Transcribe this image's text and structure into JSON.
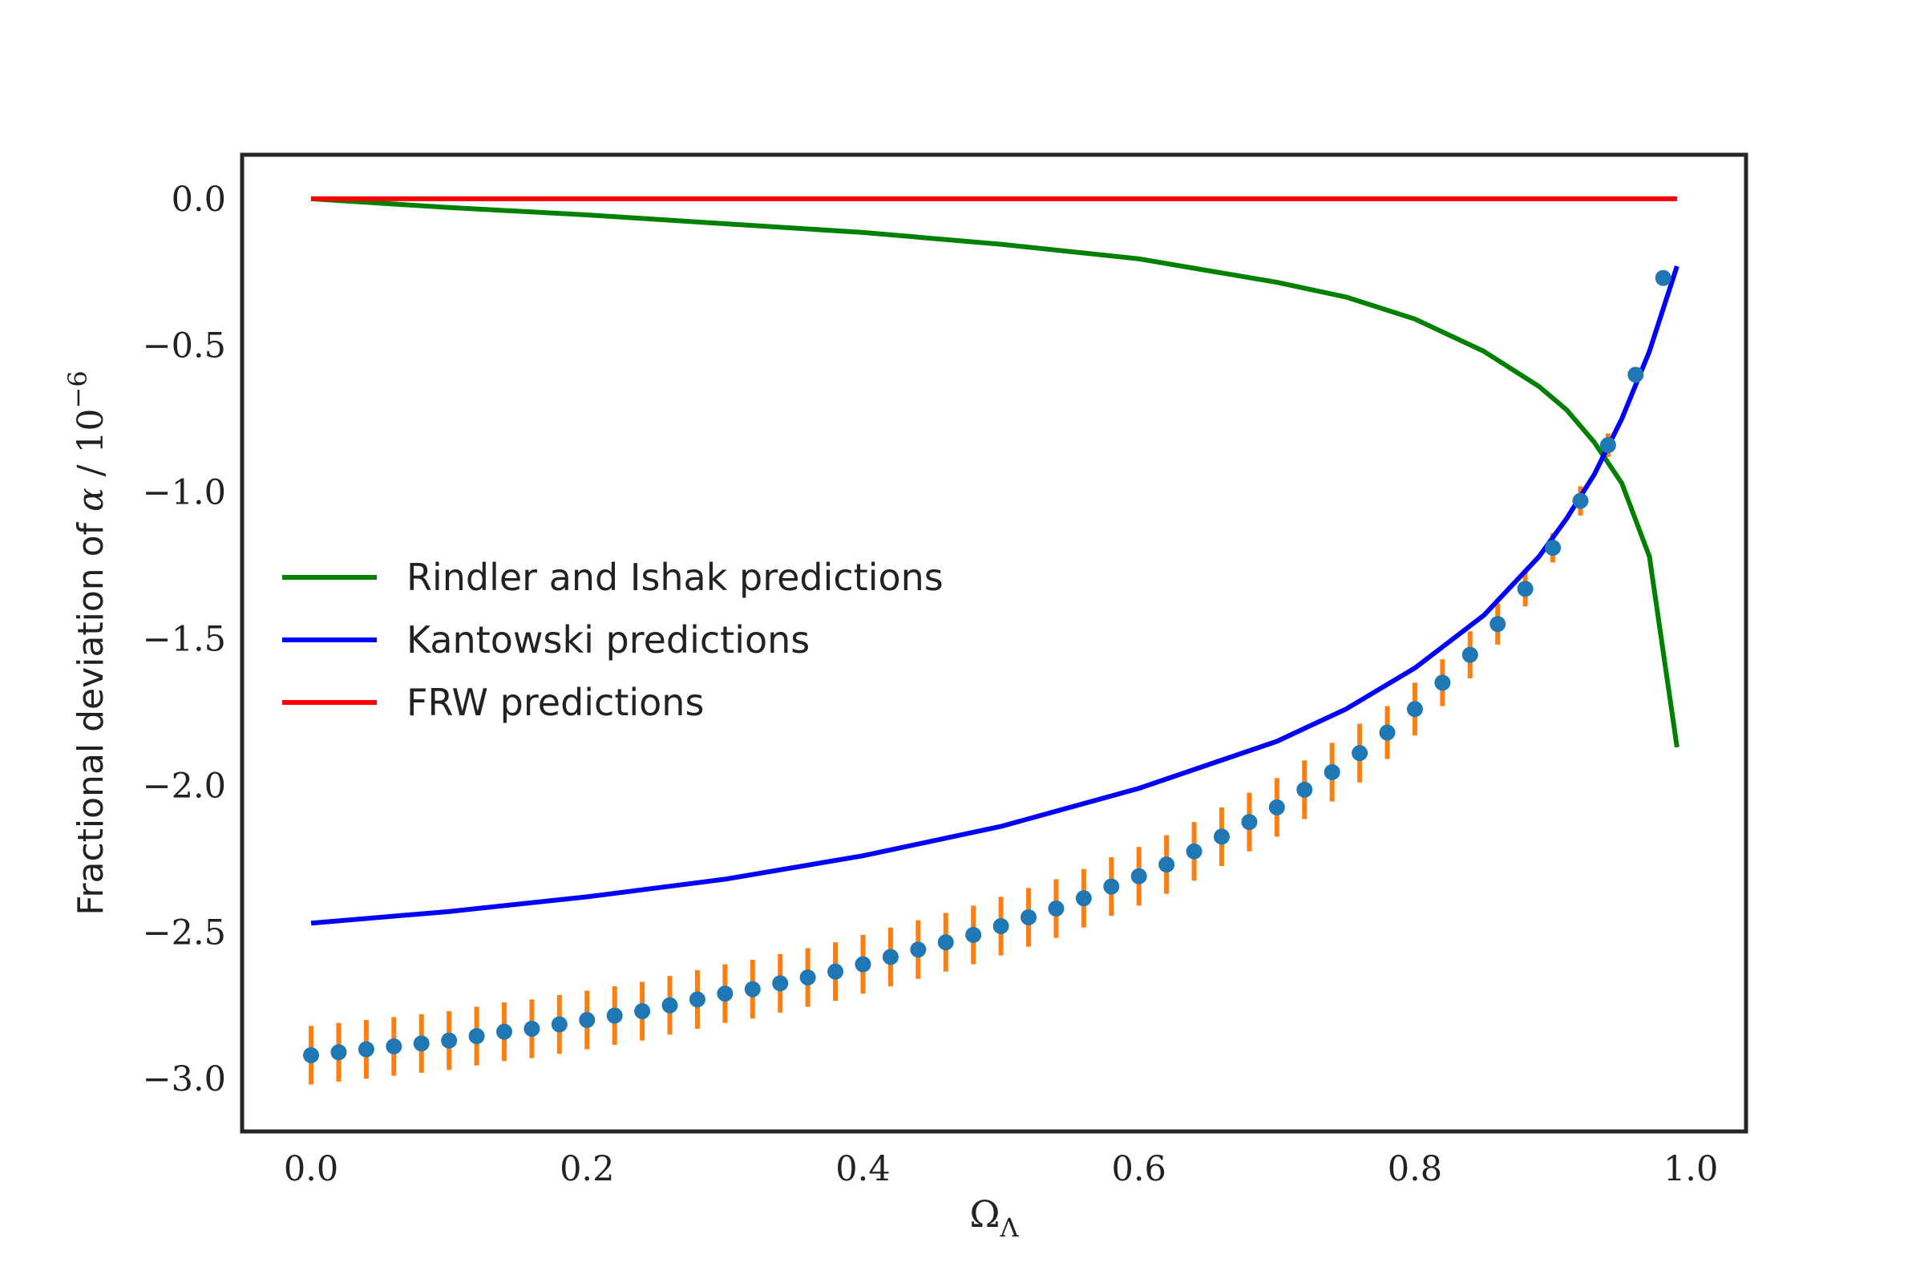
{
  "chart_data": {
    "type": "line",
    "xlabel": "Ω",
    "xlabel_sub": "Λ",
    "ylabel_prefix": "Fractional deviation of ",
    "ylabel_alpha": "α",
    "ylabel_mid": " / 10",
    "ylabel_exp": "−6",
    "xlim": [
      -0.05,
      1.04
    ],
    "ylim": [
      -3.18,
      0.15
    ],
    "x_ticks": [
      0.0,
      0.2,
      0.4,
      0.6,
      0.8,
      1.0
    ],
    "x_tick_labels": [
      "0.0",
      "0.2",
      "0.4",
      "0.6",
      "0.8",
      "1.0"
    ],
    "y_ticks": [
      0.0,
      -0.5,
      -1.0,
      -1.5,
      -2.0,
      -2.5,
      -3.0
    ],
    "y_tick_labels": [
      "0.0",
      "−0.5",
      "−1.0",
      "−1.5",
      "−2.0",
      "−2.5",
      "−3.0"
    ],
    "grid": false,
    "legend_position": "center-left",
    "series": [
      {
        "name": "Rindler and Ishak predictions",
        "kind": "line",
        "color": "#008000",
        "x": [
          0.0,
          0.1,
          0.2,
          0.3,
          0.4,
          0.5,
          0.6,
          0.7,
          0.75,
          0.8,
          0.85,
          0.89,
          0.91,
          0.93,
          0.95,
          0.97,
          0.99
        ],
        "y": [
          0.0,
          -0.03,
          -0.055,
          -0.085,
          -0.115,
          -0.155,
          -0.205,
          -0.285,
          -0.335,
          -0.41,
          -0.52,
          -0.64,
          -0.72,
          -0.83,
          -0.97,
          -1.22,
          -1.87
        ]
      },
      {
        "name": "Kantowski predictions",
        "kind": "line",
        "color": "#0000ff",
        "x": [
          0.0,
          0.1,
          0.2,
          0.3,
          0.4,
          0.5,
          0.6,
          0.7,
          0.75,
          0.8,
          0.85,
          0.89,
          0.91,
          0.93,
          0.95,
          0.97,
          0.99
        ],
        "y": [
          -2.47,
          -2.43,
          -2.38,
          -2.32,
          -2.24,
          -2.14,
          -2.01,
          -1.85,
          -1.74,
          -1.6,
          -1.42,
          -1.22,
          -1.09,
          -0.94,
          -0.75,
          -0.52,
          -0.23
        ]
      },
      {
        "name": "FRW predictions",
        "kind": "line",
        "color": "#ff0000",
        "x": [
          0.0,
          0.99
        ],
        "y": [
          0.0,
          0.0
        ]
      },
      {
        "name": "",
        "kind": "errorbar",
        "marker_color": "#1f77b4",
        "error_color": "#ff7f0e",
        "x": [
          0.0,
          0.02,
          0.04,
          0.06,
          0.08,
          0.1,
          0.12,
          0.14,
          0.16,
          0.18,
          0.2,
          0.22,
          0.24,
          0.26,
          0.28,
          0.3,
          0.32,
          0.34,
          0.36,
          0.38,
          0.4,
          0.42,
          0.44,
          0.46,
          0.48,
          0.5,
          0.52,
          0.54,
          0.56,
          0.58,
          0.6,
          0.62,
          0.64,
          0.66,
          0.68,
          0.7,
          0.72,
          0.74,
          0.76,
          0.78,
          0.8,
          0.82,
          0.84,
          0.86,
          0.88,
          0.9,
          0.92,
          0.94,
          0.96,
          0.98
        ],
        "y": [
          -2.92,
          -2.91,
          -2.9,
          -2.89,
          -2.88,
          -2.87,
          -2.855,
          -2.84,
          -2.83,
          -2.815,
          -2.8,
          -2.785,
          -2.77,
          -2.75,
          -2.73,
          -2.71,
          -2.695,
          -2.675,
          -2.655,
          -2.635,
          -2.61,
          -2.585,
          -2.56,
          -2.535,
          -2.51,
          -2.48,
          -2.45,
          -2.42,
          -2.385,
          -2.345,
          -2.31,
          -2.27,
          -2.225,
          -2.175,
          -2.125,
          -2.075,
          -2.015,
          -1.955,
          -1.89,
          -1.82,
          -1.74,
          -1.65,
          -1.555,
          -1.45,
          -1.33,
          -1.19,
          -1.03,
          -0.84,
          -0.6,
          -0.27
        ],
        "err": [
          0.1,
          0.1,
          0.1,
          0.1,
          0.1,
          0.1,
          0.1,
          0.1,
          0.1,
          0.1,
          0.1,
          0.1,
          0.1,
          0.1,
          0.1,
          0.1,
          0.1,
          0.1,
          0.1,
          0.1,
          0.1,
          0.1,
          0.1,
          0.1,
          0.1,
          0.1,
          0.1,
          0.1,
          0.1,
          0.1,
          0.1,
          0.1,
          0.1,
          0.1,
          0.1,
          0.1,
          0.1,
          0.1,
          0.1,
          0.09,
          0.09,
          0.08,
          0.08,
          0.07,
          0.06,
          0.05,
          0.05,
          0.04,
          0.02,
          0.01
        ]
      }
    ]
  }
}
